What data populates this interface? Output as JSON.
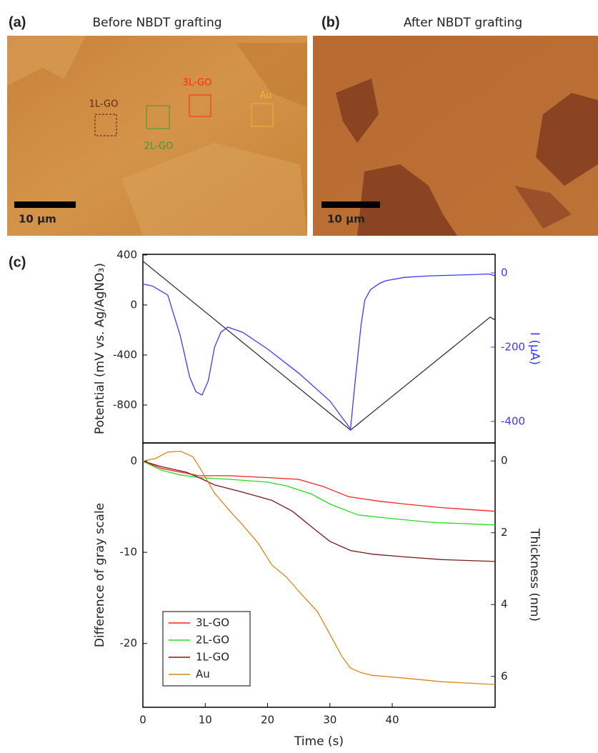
{
  "panels": [
    {
      "label": "(a)",
      "title": "Before NBDT grafting",
      "scale_bar": "10 μm",
      "regions": [
        "1L-GO",
        "2L-GO",
        "3L-GO",
        "Au"
      ]
    },
    {
      "label": "(b)",
      "title": "After  NBDT grafting",
      "scale_bar": "10 μm"
    }
  ],
  "chart_label": "(c)",
  "chart_data": [
    {
      "type": "line",
      "ylabel": "Potential (mV vs. Ag/AgNO₃)",
      "y2label": "I (μA)",
      "y2_color": "#3a3aff",
      "xlim": [
        0,
        56.5
      ],
      "ylim": [
        -1103,
        405
      ],
      "yticks": [
        -800,
        -400,
        0,
        400
      ],
      "y2lim": [
        -458,
        50
      ],
      "y2ticks": [
        -400,
        -200,
        0
      ],
      "series": [
        {
          "color": "#333333",
          "x": [
            0,
            33.3,
            55.7,
            56.5
          ],
          "values": [
            350,
            -1000,
            -97,
            -120
          ]
        },
        {
          "color": "#3a3aff",
          "axis": "y2",
          "x": [
            0,
            1.5,
            4,
            6,
            7.5,
            8.5,
            9.5,
            10.5,
            11.5,
            12.5,
            13.6,
            16,
            20,
            25,
            30,
            33.3,
            34,
            35,
            35.6,
            36.5,
            38,
            39,
            42,
            46,
            52,
            55.5,
            56.5
          ],
          "values": [
            -30,
            -35,
            -60,
            -170,
            -280,
            -320,
            -329,
            -290,
            -200,
            -160,
            -146,
            -160,
            -205,
            -270,
            -345,
            -420,
            -300,
            -140,
            -73,
            -45,
            -28,
            -21,
            -12,
            -8,
            -5,
            -3,
            -8
          ]
        }
      ]
    },
    {
      "type": "line",
      "xlabel": "Time (s)",
      "ylabel": "Difference of gray scale",
      "y2label": "Thickness (nm)",
      "xlim": [
        0,
        56.5
      ],
      "xticks": [
        0,
        10,
        20,
        30,
        40
      ],
      "ylim": [
        -27,
        2
      ],
      "yticks": [
        -20,
        -10,
        0
      ],
      "y2lim": [
        6.86,
        -0.5
      ],
      "y2ticks": [
        0,
        2,
        4,
        6
      ],
      "legend": "lower left",
      "series": [
        {
          "name": "3L-GO",
          "color": "#ff2020",
          "x": [
            0,
            3,
            6,
            9,
            14,
            20,
            25,
            29,
            33,
            38,
            42,
            48,
            56.5
          ],
          "values": [
            0,
            -0.8,
            -1.2,
            -1.6,
            -1.6,
            -1.8,
            -2,
            -2.8,
            -3.9,
            -4.4,
            -4.7,
            -5.1,
            -5.5
          ]
        },
        {
          "name": "2L-GO",
          "color": "#22dd22",
          "x": [
            0,
            3,
            6,
            9,
            14,
            20,
            23,
            27,
            30,
            34.5,
            40,
            46,
            56.5
          ],
          "values": [
            0,
            -1,
            -1.5,
            -1.8,
            -2,
            -2.3,
            -2.7,
            -3.6,
            -4.7,
            -5.9,
            -6.3,
            -6.7,
            -7
          ]
        },
        {
          "name": "1L-GO",
          "color": "#7a1a1a",
          "x": [
            0,
            3,
            6.9,
            9,
            11.5,
            16,
            20.7,
            24,
            27.6,
            30,
            33.3,
            36.8,
            42,
            48,
            56.5
          ],
          "values": [
            0,
            -0.6,
            -1.2,
            -1.8,
            -2.6,
            -3.4,
            -4.3,
            -5.5,
            -7.5,
            -8.8,
            -9.8,
            -10.2,
            -10.5,
            -10.8,
            -11
          ]
        },
        {
          "name": "Au",
          "color": "#d4891a",
          "x": [
            0,
            2,
            4,
            6,
            8,
            9.2,
            11.5,
            14,
            16,
            18.5,
            20.7,
            23,
            25.3,
            28,
            30,
            32,
            33.3,
            35,
            36.8,
            42,
            48,
            56.5
          ],
          "values": [
            0,
            0.3,
            1,
            1.1,
            0.5,
            -0.8,
            -3.5,
            -5.5,
            -7,
            -9,
            -11.4,
            -12.7,
            -14.5,
            -16.5,
            -19,
            -21.5,
            -22.7,
            -23.2,
            -23.5,
            -23.8,
            -24.2,
            -24.5
          ]
        }
      ]
    }
  ]
}
